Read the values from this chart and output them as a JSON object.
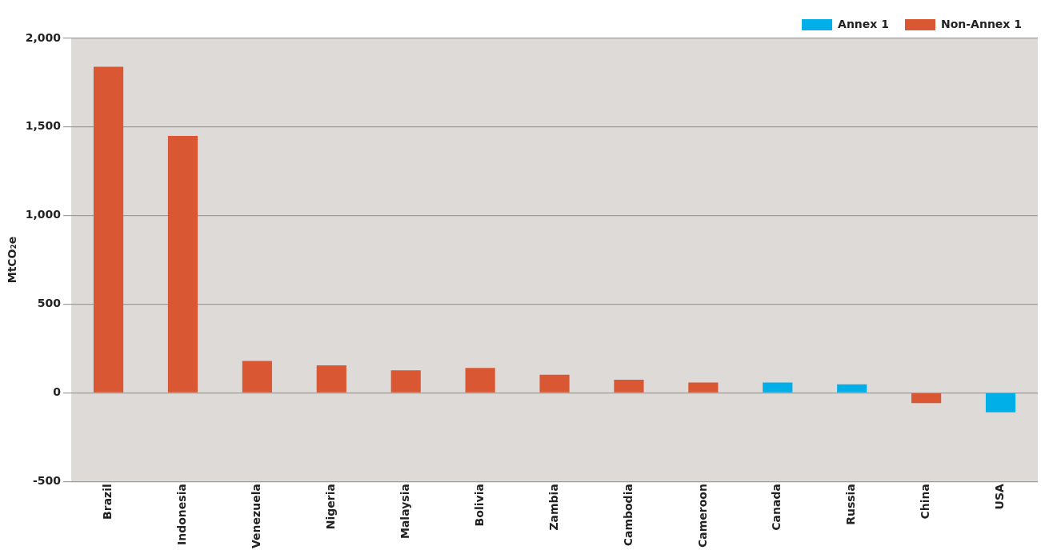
{
  "chart_data": {
    "type": "bar",
    "ylabel": "MtCO₂e",
    "categories": [
      "Brazil",
      "Indonesia",
      "Venezuela",
      "Nigeria",
      "Malaysia",
      "Bolivia",
      "Zambia",
      "Cambodia",
      "Cameroon",
      "Canada",
      "Russia",
      "China",
      "USA"
    ],
    "series": [
      {
        "name": "Annex 1",
        "color": "#00aee8",
        "values": [
          null,
          null,
          null,
          null,
          null,
          null,
          null,
          null,
          null,
          58,
          48,
          null,
          -110
        ]
      },
      {
        "name": "Non-Annex 1",
        "color": "#d95732",
        "values": [
          1840,
          1450,
          180,
          155,
          126,
          140,
          102,
          73,
          58,
          null,
          null,
          -58,
          null
        ]
      }
    ],
    "stacked": true,
    "ylim": [
      -500,
      2000
    ],
    "yticks": [
      -500,
      0,
      500,
      {
        "value": 1000,
        "label": "1,000"
      },
      {
        "value": 1500,
        "label": "1,500"
      },
      {
        "value": 2000,
        "label": "2,000"
      }
    ],
    "grid": "y",
    "legend": "top right"
  }
}
